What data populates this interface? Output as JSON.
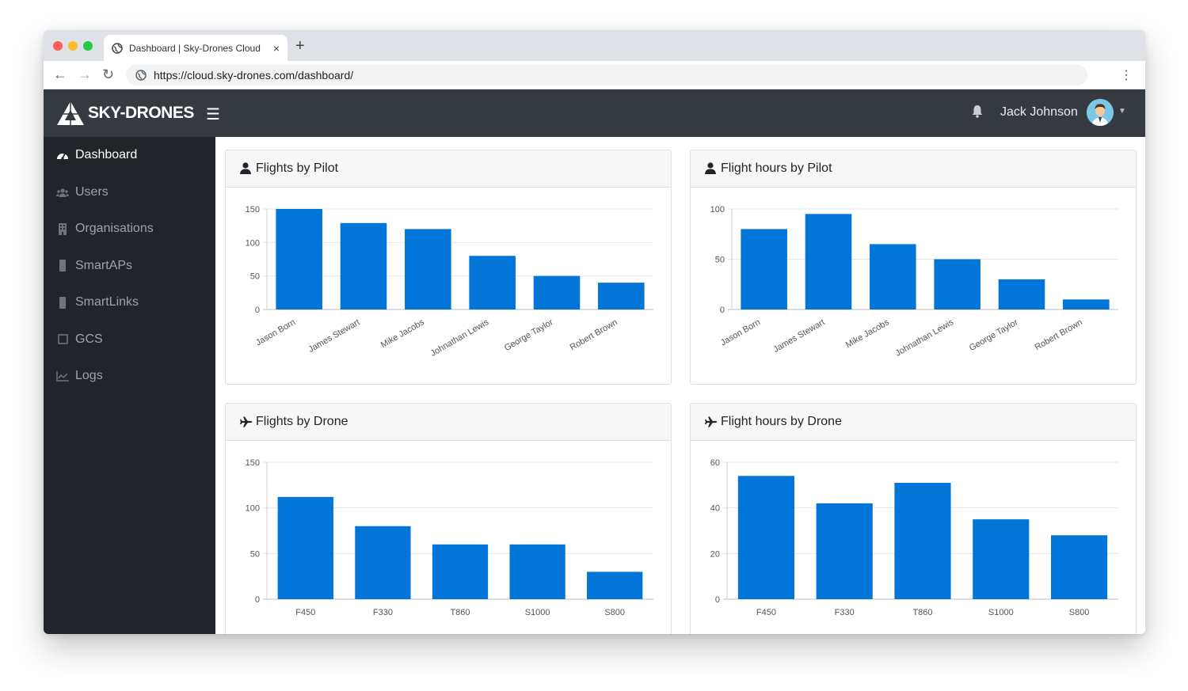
{
  "browser": {
    "tab_title": "Dashboard | Sky-Drones Cloud",
    "tab_close": "×",
    "new_tab": "+",
    "url": "https://cloud.sky-drones.com/dashboard/",
    "back": "←",
    "forward": "→",
    "reload": "↻",
    "menu": "⋮"
  },
  "header": {
    "brand": "SKY-DRONES",
    "menu_icon": "☰",
    "user_name": "Jack Johnson",
    "caret": "▼"
  },
  "sidebar": {
    "items": [
      {
        "label": "Dashboard",
        "icon": "tachometer-icon",
        "active": true
      },
      {
        "label": "Users",
        "icon": "users-icon",
        "active": false
      },
      {
        "label": "Organisations",
        "icon": "building-icon",
        "active": false
      },
      {
        "label": "SmartAPs",
        "icon": "device-icon",
        "active": false
      },
      {
        "label": "SmartLinks",
        "icon": "device-icon",
        "active": false
      },
      {
        "label": "GCS",
        "icon": "square-icon",
        "active": false
      },
      {
        "label": "Logs",
        "icon": "line-chart-icon",
        "active": false
      }
    ]
  },
  "colors": {
    "bar": "#0275d8",
    "header_bg": "#343a40",
    "sidebar_bg": "#212529"
  },
  "cards": [
    {
      "title": "Flights by Pilot",
      "icon": "user-icon"
    },
    {
      "title": "Flight hours by Pilot",
      "icon": "user-icon"
    },
    {
      "title": "Flights by Drone",
      "icon": "plane-icon"
    },
    {
      "title": "Flight hours by Drone",
      "icon": "plane-icon"
    }
  ],
  "chart_data": [
    {
      "type": "bar",
      "title": "Flights by Pilot",
      "categories": [
        "Jason Born",
        "James Stewart",
        "Mike Jacobs",
        "Johnathan Lewis",
        "George Taylor",
        "Robert Brown"
      ],
      "values": [
        150,
        129,
        120,
        80,
        50,
        40
      ],
      "ylim": [
        0,
        150
      ],
      "yticks": [
        0,
        50,
        100,
        150
      ],
      "grid": true,
      "rotated_labels": true
    },
    {
      "type": "bar",
      "title": "Flight hours by Pilot",
      "categories": [
        "Jason Born",
        "James Stewart",
        "Mike Jacobs",
        "Johnathan Lewis",
        "George Taylor",
        "Robert Brown"
      ],
      "values": [
        80,
        95,
        65,
        50,
        30,
        10
      ],
      "ylim": [
        0,
        100
      ],
      "yticks": [
        0,
        50,
        100
      ],
      "grid": true,
      "rotated_labels": true
    },
    {
      "type": "bar",
      "title": "Flights by Drone",
      "categories": [
        "F450",
        "F330",
        "T860",
        "S1000",
        "S800"
      ],
      "values": [
        112,
        80,
        60,
        60,
        30
      ],
      "ylim": [
        0,
        150
      ],
      "yticks": [
        0,
        50,
        100,
        150
      ],
      "grid": true,
      "rotated_labels": false
    },
    {
      "type": "bar",
      "title": "Flight hours by Drone",
      "categories": [
        "F450",
        "F330",
        "T860",
        "S1000",
        "S800"
      ],
      "values": [
        54,
        42,
        51,
        35,
        28
      ],
      "ylim": [
        0,
        60
      ],
      "yticks": [
        0,
        20,
        40,
        60
      ],
      "grid": true,
      "rotated_labels": false
    }
  ]
}
